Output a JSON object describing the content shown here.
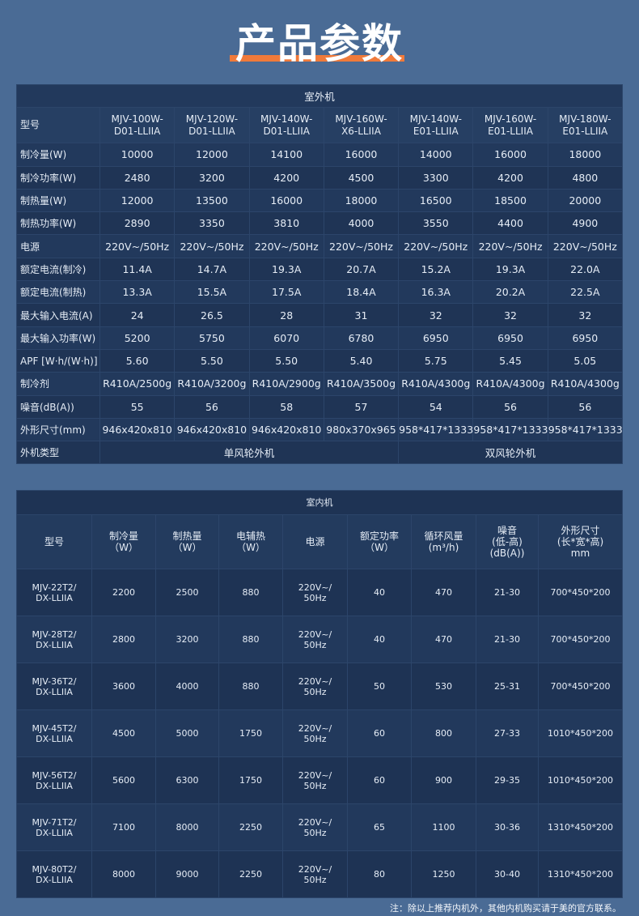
{
  "title": "产品参数",
  "outdoor": {
    "caption": "室外机",
    "model_label": "型号",
    "models": [
      [
        "MJV-100W-",
        "D01-LLIIA"
      ],
      [
        "MJV-120W-",
        "D01-LLIIA"
      ],
      [
        "MJV-140W-",
        "D01-LLIIA"
      ],
      [
        "MJV-160W-",
        "X6-LLIIA"
      ],
      [
        "MJV-140W-",
        "E01-LLIIA"
      ],
      [
        "MJV-160W-",
        "E01-LLIIA"
      ],
      [
        "MJV-180W-",
        "E01-LLIIA"
      ]
    ],
    "rows": [
      {
        "label": "制冷量(W)",
        "values": [
          "10000",
          "12000",
          "14100",
          "16000",
          "14000",
          "16000",
          "18000"
        ]
      },
      {
        "label": "制冷功率(W)",
        "values": [
          "2480",
          "3200",
          "4200",
          "4500",
          "3300",
          "4200",
          "4800"
        ]
      },
      {
        "label": "制热量(W)",
        "values": [
          "12000",
          "13500",
          "16000",
          "18000",
          "16500",
          "18500",
          "20000"
        ]
      },
      {
        "label": "制热功率(W)",
        "values": [
          "2890",
          "3350",
          "3810",
          "4000",
          "3550",
          "4400",
          "4900"
        ]
      },
      {
        "label": "电源",
        "values": [
          "220V~/50Hz",
          "220V~/50Hz",
          "220V~/50Hz",
          "220V~/50Hz",
          "220V~/50Hz",
          "220V~/50Hz",
          "220V~/50Hz"
        ]
      },
      {
        "label": "额定电流(制冷)",
        "values": [
          "11.4A",
          "14.7A",
          "19.3A",
          "20.7A",
          "15.2A",
          "19.3A",
          "22.0A"
        ]
      },
      {
        "label": "额定电流(制热)",
        "values": [
          "13.3A",
          "15.5A",
          "17.5A",
          "18.4A",
          "16.3A",
          "20.2A",
          "22.5A"
        ]
      },
      {
        "label": "最大输入电流(A)",
        "values": [
          "24",
          "26.5",
          "28",
          "31",
          "32",
          "32",
          "32"
        ]
      },
      {
        "label": "最大输入功率(W)",
        "values": [
          "5200",
          "5750",
          "6070",
          "6780",
          "6950",
          "6950",
          "6950"
        ]
      },
      {
        "label": "APF [W·h/(W·h)]",
        "values": [
          "5.60",
          "5.50",
          "5.50",
          "5.40",
          "5.75",
          "5.45",
          "5.05"
        ]
      },
      {
        "label": "制冷剂",
        "values": [
          "R410A/2500g",
          "R410A/3200g",
          "R410A/2900g",
          "R410A/3500g",
          "R410A/4300g",
          "R410A/4300g",
          "R410A/4300g"
        ]
      },
      {
        "label": "噪音(dB(A))",
        "values": [
          "55",
          "56",
          "58",
          "57",
          "54",
          "56",
          "56"
        ]
      },
      {
        "label": "外形尺寸(mm)",
        "values": [
          "946x420x810",
          "946x420x810",
          "946x420x810",
          "980x370x965",
          "958*417*1333",
          "958*417*1333",
          "958*417*1333"
        ]
      }
    ],
    "type_label": "外机类型",
    "type_single": "单风轮外机",
    "type_double": "双风轮外机"
  },
  "indoor": {
    "caption": "室内机",
    "headers": [
      [
        "型号"
      ],
      [
        "制冷量",
        "（W）"
      ],
      [
        "制热量",
        "（W）"
      ],
      [
        "电辅热",
        "（W）"
      ],
      [
        "电源"
      ],
      [
        "额定功率",
        "（W）"
      ],
      [
        "循环风量",
        "(m³/h)"
      ],
      [
        "噪音",
        "(低-高)",
        "(dB(A))"
      ],
      [
        "外形尺寸",
        "(长*宽*高)",
        "mm"
      ]
    ],
    "rows": [
      [
        [
          "MJV-22T2/",
          "DX-LLIIA"
        ],
        "2200",
        "2500",
        "880",
        [
          "220V~/",
          "50Hz"
        ],
        "40",
        "470",
        "21-30",
        "700*450*200"
      ],
      [
        [
          "MJV-28T2/",
          "DX-LLIIA"
        ],
        "2800",
        "3200",
        "880",
        [
          "220V~/",
          "50Hz"
        ],
        "40",
        "470",
        "21-30",
        "700*450*200"
      ],
      [
        [
          "MJV-36T2/",
          "DX-LLIIA"
        ],
        "3600",
        "4000",
        "880",
        [
          "220V~/",
          "50Hz"
        ],
        "50",
        "530",
        "25-31",
        "700*450*200"
      ],
      [
        [
          "MJV-45T2/",
          "DX-LLIIA"
        ],
        "4500",
        "5000",
        "1750",
        [
          "220V~/",
          "50Hz"
        ],
        "60",
        "800",
        "27-33",
        "1010*450*200"
      ],
      [
        [
          "MJV-56T2/",
          "DX-LLIIA"
        ],
        "5600",
        "6300",
        "1750",
        [
          "220V~/",
          "50Hz"
        ],
        "60",
        "900",
        "29-35",
        "1010*450*200"
      ],
      [
        [
          "MJV-71T2/",
          "DX-LLIIA"
        ],
        "7100",
        "8000",
        "2250",
        [
          "220V~/",
          "50Hz"
        ],
        "65",
        "1100",
        "30-36",
        "1310*450*200"
      ],
      [
        [
          "MJV-80T2/",
          "DX-LLIIA"
        ],
        "8000",
        "9000",
        "2250",
        [
          "220V~/",
          "50Hz"
        ],
        "80",
        "1250",
        "30-40",
        "1310*450*200"
      ]
    ]
  },
  "note": "注：除以上推荐内机外，其他内机购买请于美的官方联系。",
  "colors": {
    "background": "#4a6b95",
    "accent": "#f07a3a",
    "caption_bg": "#afbac9",
    "cell_bg": "#22395c"
  }
}
